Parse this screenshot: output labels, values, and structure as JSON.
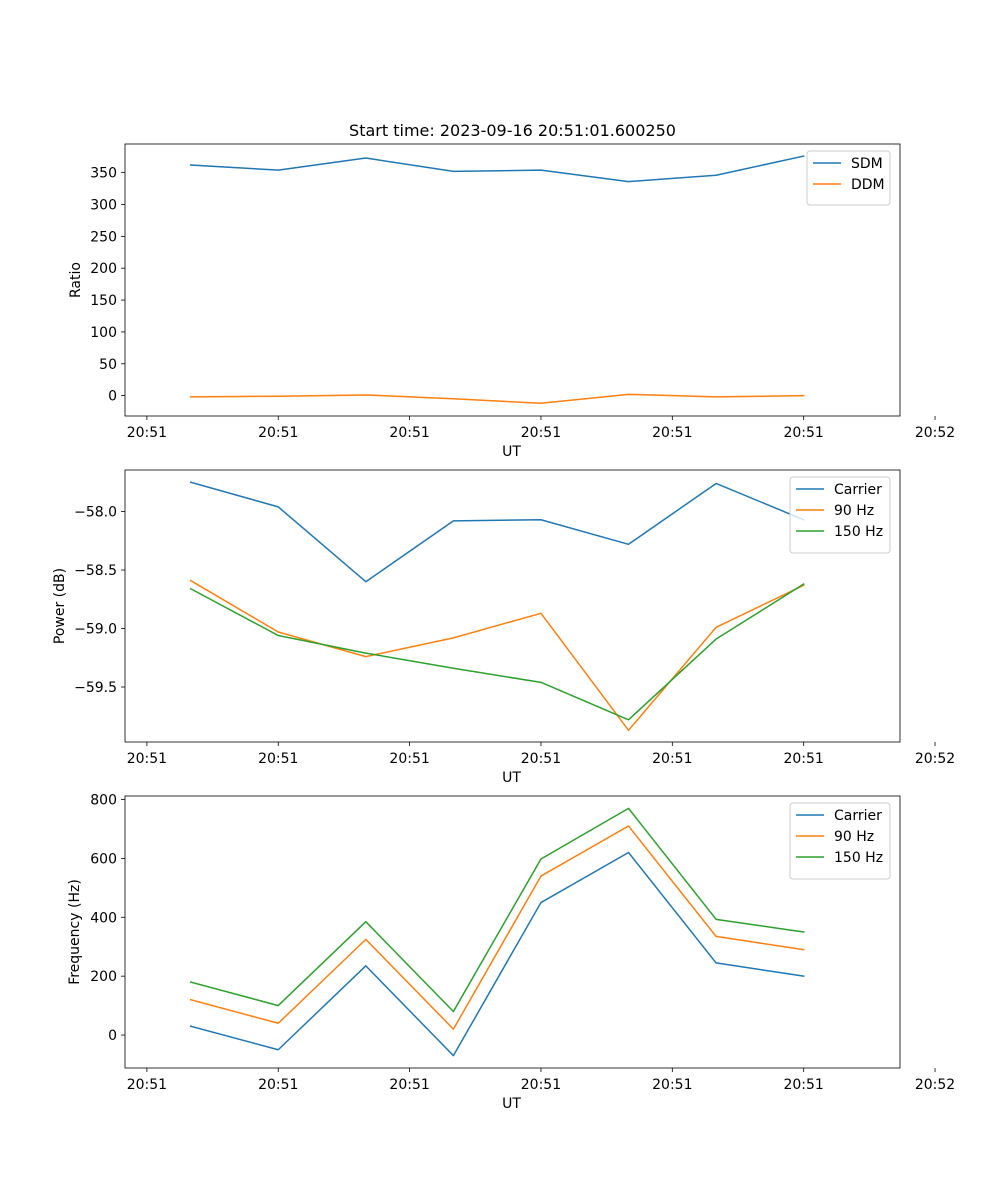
{
  "chart_data": [
    {
      "type": "line",
      "title": "Start time: 2023-09-16 20:51:01.600250",
      "xlabel": "UT",
      "ylabel": "Ratio",
      "x": [
        1,
        2,
        3,
        4,
        5,
        6,
        7,
        8
      ],
      "xlim": [
        0.25,
        9.1
      ],
      "xticks": [
        0.5,
        2,
        3.5,
        5,
        6.5,
        8,
        9.5
      ],
      "xtick_labels": [
        "20:51",
        "20:51",
        "20:51",
        "20:51",
        "20:51",
        "20:51",
        "20:52"
      ],
      "ylim": [
        -32,
        395
      ],
      "yticks": [
        0,
        50,
        100,
        150,
        200,
        250,
        300,
        350
      ],
      "legend_location": "top-right",
      "series": [
        {
          "name": "SDM",
          "color": "#1f77b4",
          "values": [
            362,
            354,
            373,
            352,
            354,
            336,
            346,
            376
          ]
        },
        {
          "name": "DDM",
          "color": "#ff7f0e",
          "values": [
            -2,
            -1,
            1,
            -5,
            -12,
            2,
            -2,
            0
          ]
        }
      ]
    },
    {
      "type": "line",
      "title": "",
      "xlabel": "UT",
      "ylabel": "Power (dB)",
      "x": [
        1,
        2,
        3,
        4,
        5,
        6,
        7,
        8
      ],
      "xlim": [
        0.25,
        9.1
      ],
      "xticks": [
        0.5,
        2,
        3.5,
        5,
        6.5,
        8,
        9.5
      ],
      "xtick_labels": [
        "20:51",
        "20:51",
        "20:51",
        "20:51",
        "20:51",
        "20:51",
        "20:52"
      ],
      "ylim": [
        -59.97,
        -57.645
      ],
      "yticks": [
        -59.5,
        -59.0,
        -58.5,
        -58.0
      ],
      "ytick_labels": [
        "−59.5",
        "−59.0",
        "−58.5",
        "−58.0"
      ],
      "legend_location": "top-right",
      "series": [
        {
          "name": "Carrier",
          "color": "#1f77b4",
          "values": [
            -57.75,
            -57.96,
            -58.6,
            -58.08,
            -58.07,
            -58.28,
            -57.76,
            -58.07
          ]
        },
        {
          "name": "90 Hz",
          "color": "#ff7f0e",
          "values": [
            -58.59,
            -59.03,
            -59.24,
            -59.08,
            -58.87,
            -59.87,
            -58.99,
            -58.63
          ]
        },
        {
          "name": "150 Hz",
          "color": "#2ca02c",
          "values": [
            -58.66,
            -59.06,
            -59.21,
            -59.34,
            -59.46,
            -59.78,
            -59.09,
            -58.62
          ]
        }
      ]
    },
    {
      "type": "line",
      "title": "",
      "xlabel": "UT",
      "ylabel": "Frequency (Hz)",
      "x": [
        1,
        2,
        3,
        4,
        5,
        6,
        7,
        8
      ],
      "xlim": [
        0.25,
        9.1
      ],
      "xticks": [
        0.5,
        2,
        3.5,
        5,
        6.5,
        8,
        9.5
      ],
      "xtick_labels": [
        "20:51",
        "20:51",
        "20:51",
        "20:51",
        "20:51",
        "20:51",
        "20:52"
      ],
      "ylim": [
        -112,
        812
      ],
      "yticks": [
        0,
        200,
        400,
        600,
        800
      ],
      "legend_location": "top-right",
      "series": [
        {
          "name": "Carrier",
          "color": "#1f77b4",
          "values": [
            30,
            -50,
            235,
            -70,
            450,
            620,
            245,
            200
          ]
        },
        {
          "name": "90 Hz",
          "color": "#ff7f0e",
          "values": [
            120,
            40,
            325,
            20,
            540,
            710,
            335,
            290
          ]
        },
        {
          "name": "150 Hz",
          "color": "#2ca02c",
          "values": [
            180,
            100,
            385,
            80,
            598,
            770,
            393,
            350
          ]
        }
      ]
    }
  ]
}
